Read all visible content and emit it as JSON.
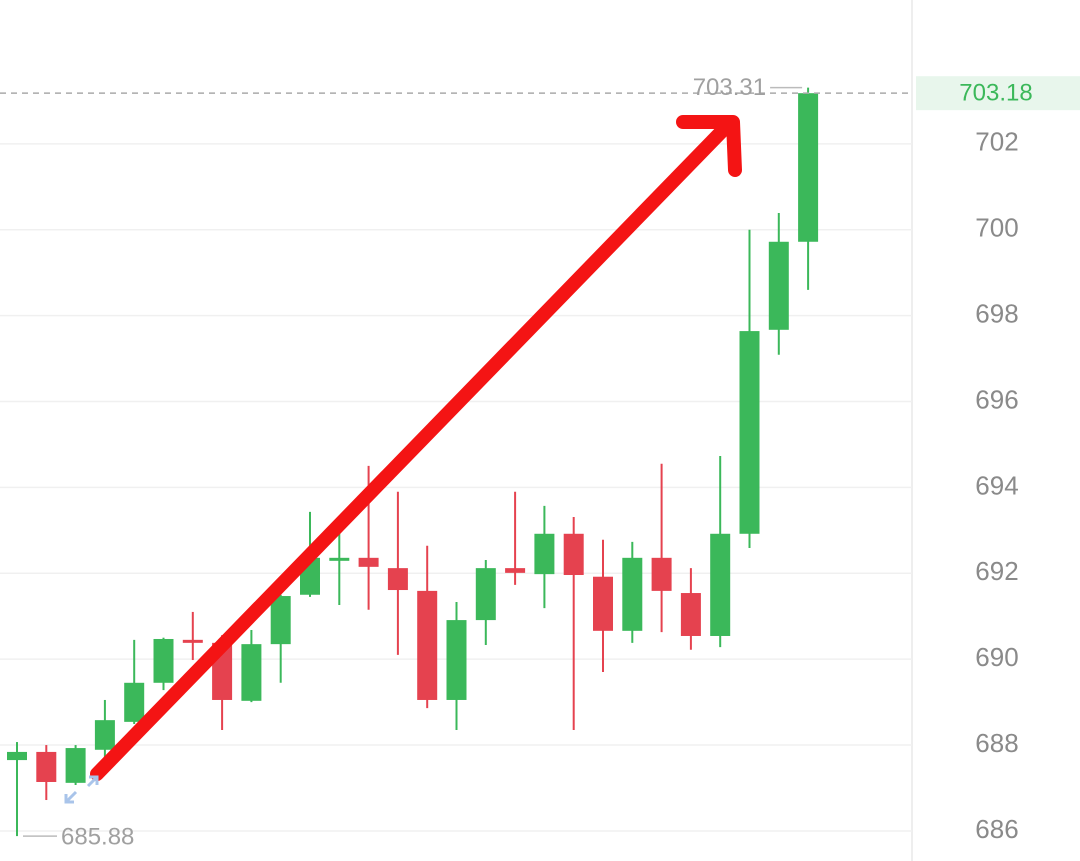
{
  "chart_data": {
    "type": "candlestick",
    "up_color": "#3bb85a",
    "down_color": "#e5424f",
    "open": [
      687.65,
      687.84,
      687.12,
      687.89,
      688.54,
      689.45,
      690.45,
      690.38,
      689.03,
      690.35,
      691.5,
      692.29,
      692.36,
      692.12,
      691.59,
      689.05,
      690.91,
      692.12,
      691.98,
      692.92,
      691.92,
      690.66,
      692.36,
      691.54,
      690.54,
      692.92,
      697.67,
      699.72
    ],
    "high": [
      688.07,
      688.0,
      688.0,
      689.05,
      690.45,
      690.5,
      691.1,
      690.56,
      690.68,
      691.5,
      693.43,
      693.0,
      694.5,
      693.9,
      692.64,
      691.33,
      692.31,
      693.9,
      693.57,
      693.31,
      692.78,
      692.73,
      694.55,
      692.12,
      694.73,
      700.0,
      700.39,
      703.31
    ],
    "low": [
      685.88,
      686.72,
      687.07,
      687.65,
      688.49,
      689.28,
      689.98,
      688.35,
      689.0,
      689.45,
      691.45,
      691.26,
      691.15,
      690.1,
      688.86,
      688.35,
      690.33,
      691.73,
      691.19,
      688.35,
      689.7,
      690.38,
      690.63,
      690.22,
      690.28,
      692.59,
      697.09,
      698.6
    ],
    "close": [
      687.84,
      687.14,
      687.93,
      688.58,
      689.45,
      690.47,
      690.4,
      689.05,
      690.35,
      691.47,
      692.36,
      692.36,
      692.15,
      691.61,
      689.05,
      690.91,
      692.12,
      692.01,
      692.92,
      691.96,
      690.66,
      692.36,
      691.59,
      690.54,
      692.92,
      697.64,
      699.72,
      703.18
    ],
    "ylim": [
      685.3,
      705.35
    ],
    "yticks": [
      686,
      688,
      690,
      692,
      694,
      696,
      698,
      700,
      702
    ],
    "grid": true
  }
}
